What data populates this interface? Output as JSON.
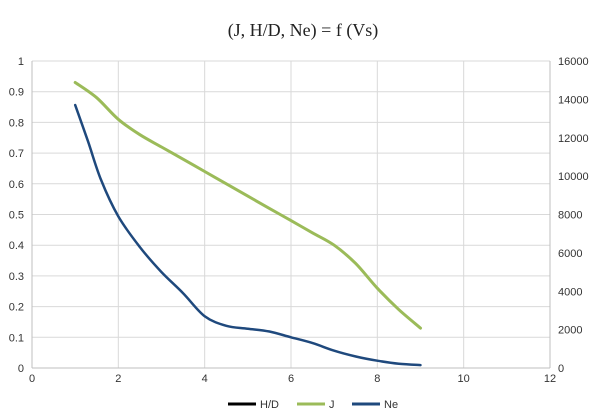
{
  "chart_data": {
    "type": "line",
    "title": "(J, H/D, Ne) = f (Vs)",
    "xlim": [
      0,
      12
    ],
    "x_ticks": [
      0,
      2,
      4,
      6,
      8,
      10,
      12
    ],
    "ylim_left": [
      0,
      1
    ],
    "y_ticks_left": [
      0,
      0.1,
      0.2,
      0.3,
      0.4,
      0.5,
      0.6,
      0.7,
      0.8,
      0.9,
      1
    ],
    "ylim_right": [
      0,
      16000
    ],
    "y_ticks_right": [
      0,
      2000,
      4000,
      6000,
      8000,
      10000,
      12000,
      14000,
      16000
    ],
    "grid": true,
    "legend_position": "bottom",
    "series": [
      {
        "name": "H/D",
        "axis": "left",
        "color": "#000000",
        "x": [],
        "y": []
      },
      {
        "name": "J",
        "axis": "left",
        "color": "#9bbb59",
        "x": [
          1,
          1.5,
          2,
          2.5,
          3,
          3.5,
          4,
          4.5,
          5,
          5.5,
          6,
          6.5,
          7,
          7.5,
          8,
          8.5,
          9
        ],
        "y": [
          0.93,
          0.88,
          0.81,
          0.76,
          0.72,
          0.68,
          0.64,
          0.6,
          0.56,
          0.52,
          0.48,
          0.44,
          0.4,
          0.34,
          0.26,
          0.19,
          0.13
        ]
      },
      {
        "name": "Ne",
        "axis": "right",
        "color": "#1f497d",
        "x": [
          1,
          1.3,
          1.6,
          2,
          2.5,
          3,
          3.5,
          4,
          4.5,
          5,
          5.5,
          6,
          6.5,
          7,
          7.5,
          8,
          8.5,
          9
        ],
        "y": [
          13700,
          11800,
          9800,
          7900,
          6300,
          5000,
          3900,
          2700,
          2200,
          2050,
          1900,
          1600,
          1300,
          900,
          600,
          380,
          220,
          150
        ]
      }
    ]
  }
}
